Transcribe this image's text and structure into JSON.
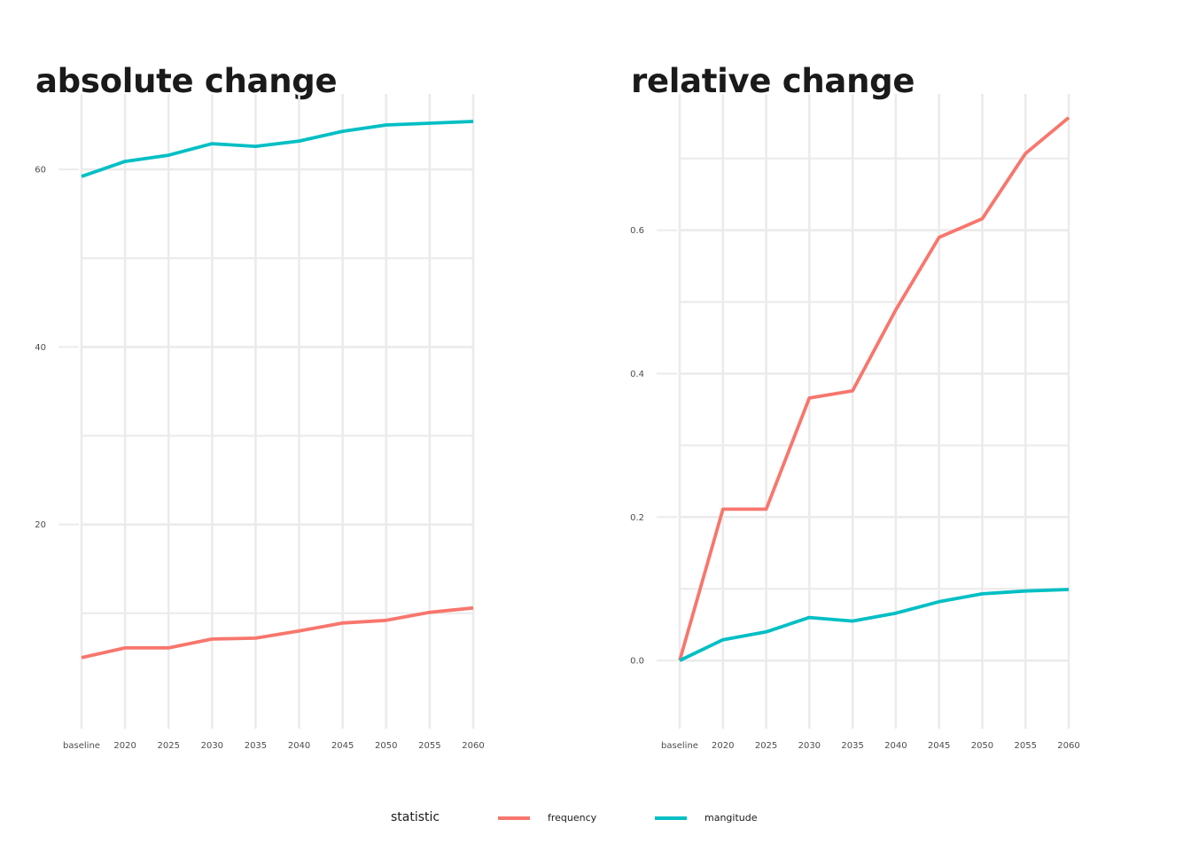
{
  "chart_data": [
    {
      "type": "line",
      "title": "absolute change",
      "categories": [
        "baseline",
        "2020",
        "2025",
        "2030",
        "2035",
        "2040",
        "2045",
        "2050",
        "2055",
        "2060"
      ],
      "series": [
        {
          "name": "frequency",
          "color": "#F8766D",
          "values": [
            5.0,
            6.1,
            6.1,
            7.1,
            7.2,
            8.0,
            8.9,
            9.2,
            10.1,
            10.6
          ]
        },
        {
          "name": "magnitude",
          "color": "#00BFC4",
          "values": [
            59.2,
            60.9,
            61.6,
            62.9,
            62.6,
            63.2,
            64.3,
            65.0,
            65.2,
            65.4
          ]
        }
      ],
      "ylim": [
        -3,
        68.5
      ],
      "y_ticks": [
        20,
        40,
        60
      ],
      "y_tick_labels": [
        "20",
        "40",
        "60"
      ],
      "grid": true
    },
    {
      "type": "line",
      "title": "relative change",
      "categories": [
        "baseline",
        "2020",
        "2025",
        "2030",
        "2035",
        "2040",
        "2045",
        "2050",
        "2055",
        "2060"
      ],
      "series": [
        {
          "name": "frequency",
          "color": "#F8766D",
          "values": [
            0.0,
            0.211,
            0.211,
            0.366,
            0.376,
            0.489,
            0.59,
            0.616,
            0.707,
            0.757
          ]
        },
        {
          "name": "magnitude",
          "color": "#00BFC4",
          "values": [
            0.0,
            0.029,
            0.04,
            0.06,
            0.055,
            0.066,
            0.082,
            0.093,
            0.097,
            0.099
          ]
        }
      ],
      "ylim": [
        -0.095,
        0.79
      ],
      "y_ticks": [
        0.0,
        0.2,
        0.4,
        0.6
      ],
      "y_tick_labels": [
        "0.0",
        "0.2",
        "0.4",
        "0.6"
      ],
      "grid": true
    }
  ],
  "legend": {
    "title": "statistic",
    "placement": "bottom",
    "items": [
      {
        "label": "frequency",
        "color": "#F8766D"
      },
      {
        "label": "mangitude",
        "color": "#00BFC4"
      }
    ]
  }
}
